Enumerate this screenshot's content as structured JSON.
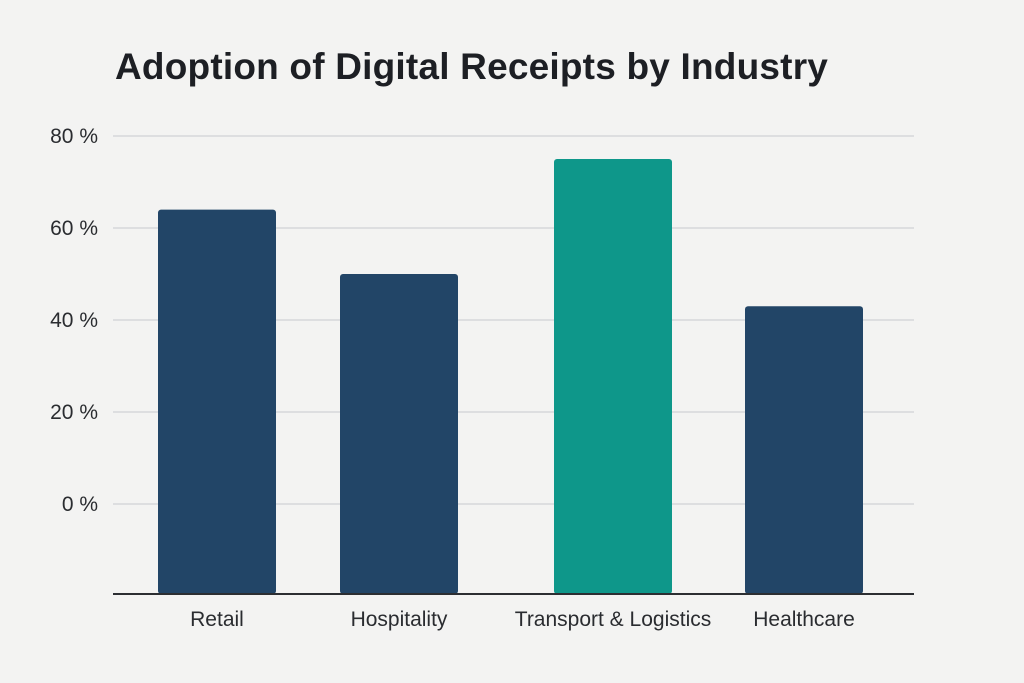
{
  "chart_data": {
    "type": "bar",
    "title": "Adoption of Digital Receipts by Industry",
    "categories": [
      "Retail",
      "Hospitality",
      "Transport & Logistics",
      "Healthcare"
    ],
    "values": [
      64,
      50,
      75,
      43
    ],
    "y_ticks": [
      "80 %",
      "60 %",
      "40 %",
      "20 %",
      "0 %"
    ],
    "y_tick_values": [
      80,
      60,
      40,
      20,
      0
    ],
    "ylim": [
      0,
      80
    ],
    "grid": true,
    "legend": "none",
    "colors": {
      "default_bar": "#224567",
      "highlight_bar": "#0e978a",
      "gridline": "#d6d8d9",
      "baseline": "#2c2e32",
      "background": "#f3f3f2"
    },
    "highlight_category": "Transport & Logistics"
  }
}
